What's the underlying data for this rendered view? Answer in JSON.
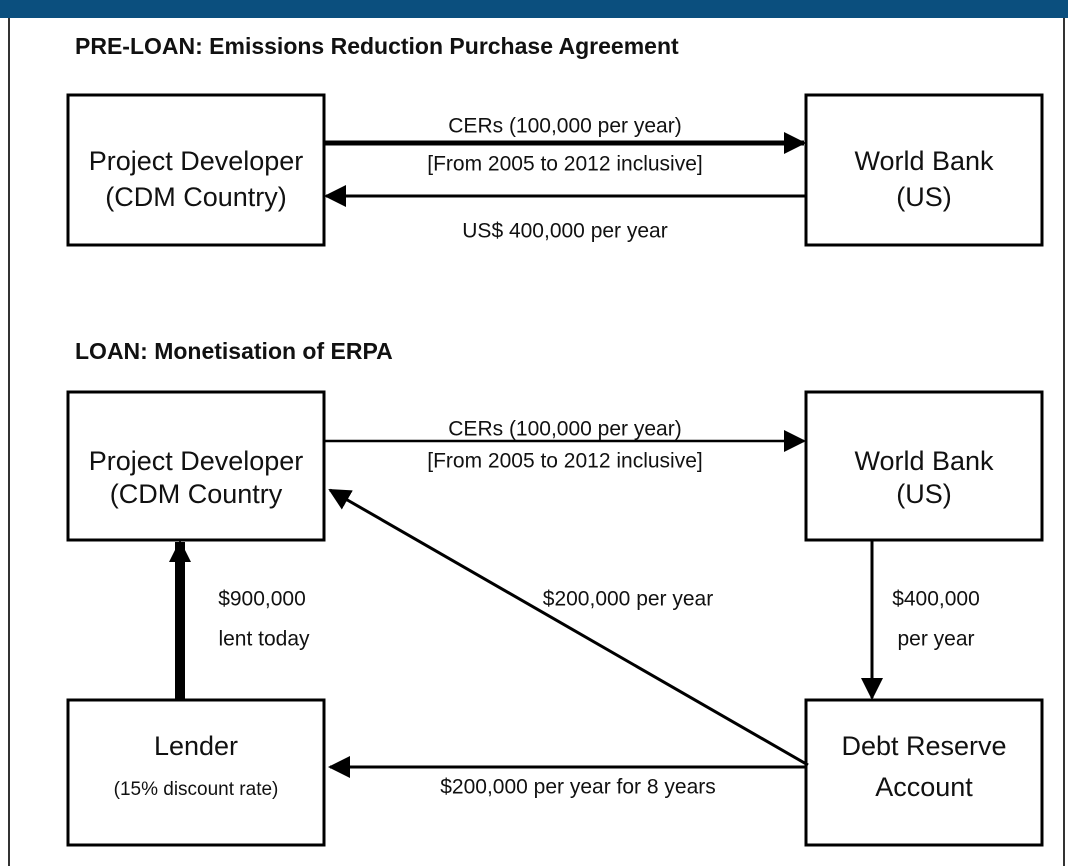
{
  "sections": [
    {
      "title": "PRE-LOAN:  Emissions Reduction Purchase Agreement",
      "nodes": [
        {
          "lines": [
            "Project Developer",
            "(CDM Country)"
          ]
        },
        {
          "lines": [
            "World Bank",
            "(US)"
          ]
        }
      ],
      "edges": [
        {
          "lines": [
            "CERs (100,000 per year)",
            "[From 2005 to 2012 inclusive]"
          ]
        },
        {
          "lines": [
            "US$ 400,000 per year"
          ]
        }
      ]
    },
    {
      "title": "LOAN:  Monetisation of ERPA",
      "nodes": [
        {
          "lines": [
            "Project Developer",
            "(CDM Country"
          ]
        },
        {
          "lines": [
            "World Bank",
            "(US)"
          ]
        },
        {
          "lines": [
            "Lender",
            "(15% discount rate)"
          ]
        },
        {
          "lines": [
            "Debt Reserve",
            "Account"
          ]
        }
      ],
      "edges": [
        {
          "lines": [
            "CERs (100,000 per year)",
            "[From 2005 to 2012 inclusive]"
          ]
        },
        {
          "lines": [
            "$200,000 per year"
          ]
        },
        {
          "lines": [
            "$900,000",
            "lent today"
          ]
        },
        {
          "lines": [
            "$400,000",
            "per year"
          ]
        },
        {
          "lines": [
            "$200,000 per year for 8 years"
          ]
        }
      ]
    }
  ]
}
